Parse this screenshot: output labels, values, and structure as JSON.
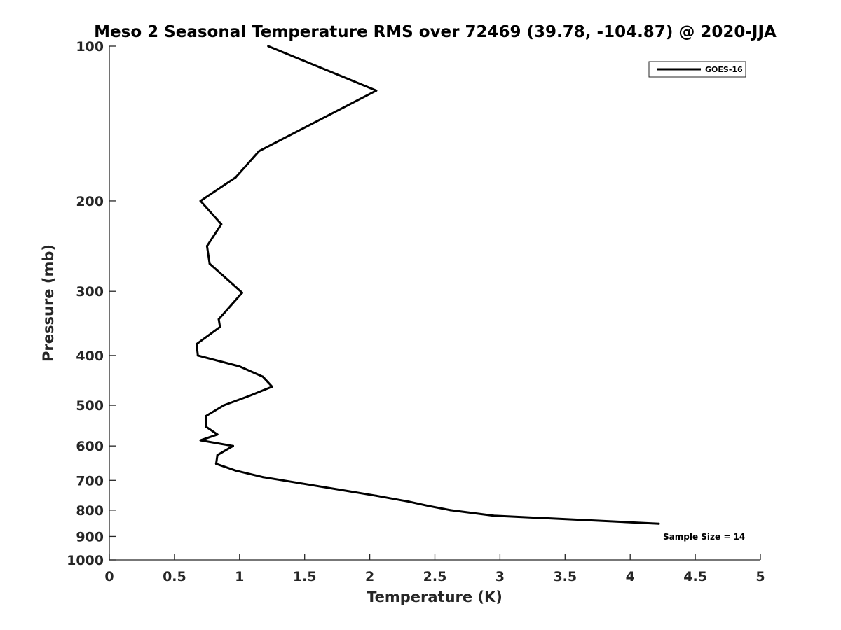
{
  "chart_data": {
    "type": "line",
    "title": "Meso 2 Seasonal Temperature RMS over 72469 (39.78, -104.87) @ 2020-JJA",
    "xlabel": "Temperature (K)",
    "ylabel": "Pressure (mb)",
    "xlim": [
      0,
      5
    ],
    "ylim": [
      100,
      1000
    ],
    "yscale": "log",
    "y_inverted": true,
    "xticks": [
      "0",
      "0.5",
      "1",
      "1.5",
      "2",
      "2.5",
      "3",
      "3.5",
      "4",
      "4.5",
      "5"
    ],
    "yticks": [
      "100",
      "200",
      "300",
      "400",
      "500",
      "600",
      "700",
      "800",
      "900",
      "1000"
    ],
    "legend_position": "top-right",
    "grid": false,
    "annotation": "Sample Size = 14",
    "series": [
      {
        "name": "GOES-16",
        "color": "#000000",
        "points": [
          {
            "x": 1.22,
            "p": 100
          },
          {
            "x": 2.05,
            "p": 122
          },
          {
            "x": 1.15,
            "p": 160
          },
          {
            "x": 0.97,
            "p": 180
          },
          {
            "x": 0.7,
            "p": 200
          },
          {
            "x": 0.86,
            "p": 222
          },
          {
            "x": 0.75,
            "p": 245
          },
          {
            "x": 0.77,
            "p": 265
          },
          {
            "x": 0.91,
            "p": 285
          },
          {
            "x": 1.02,
            "p": 302
          },
          {
            "x": 0.84,
            "p": 340
          },
          {
            "x": 0.85,
            "p": 352
          },
          {
            "x": 0.67,
            "p": 380
          },
          {
            "x": 0.68,
            "p": 400
          },
          {
            "x": 1.0,
            "p": 420
          },
          {
            "x": 1.18,
            "p": 440
          },
          {
            "x": 1.25,
            "p": 460
          },
          {
            "x": 1.07,
            "p": 480
          },
          {
            "x": 0.88,
            "p": 500
          },
          {
            "x": 0.74,
            "p": 525
          },
          {
            "x": 0.74,
            "p": 550
          },
          {
            "x": 0.83,
            "p": 570
          },
          {
            "x": 0.7,
            "p": 585
          },
          {
            "x": 0.95,
            "p": 600
          },
          {
            "x": 0.83,
            "p": 625
          },
          {
            "x": 0.82,
            "p": 650
          },
          {
            "x": 0.97,
            "p": 670
          },
          {
            "x": 1.18,
            "p": 690
          },
          {
            "x": 1.48,
            "p": 710
          },
          {
            "x": 2.05,
            "p": 750
          },
          {
            "x": 2.3,
            "p": 770
          },
          {
            "x": 2.45,
            "p": 785
          },
          {
            "x": 2.62,
            "p": 800
          },
          {
            "x": 2.95,
            "p": 820
          },
          {
            "x": 4.22,
            "p": 850
          }
        ]
      }
    ]
  }
}
